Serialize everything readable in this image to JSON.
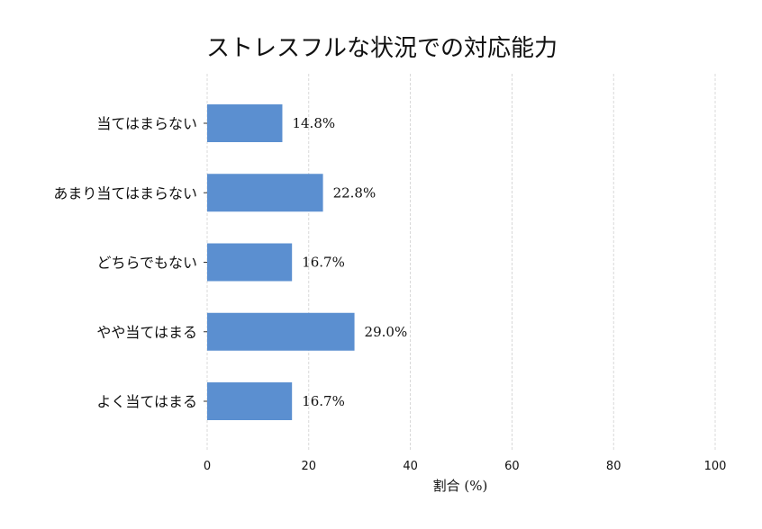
{
  "chart_data": {
    "type": "bar",
    "orientation": "horizontal",
    "title": "ストレスフルな状況での対応能力",
    "xlabel": "割合 (%)",
    "ylabel": "",
    "categories": [
      "当てはまらない",
      "あまり当てはまらない",
      "どちらでもない",
      "やや当てはまる",
      "よく当てはまる"
    ],
    "values": [
      14.8,
      22.8,
      16.7,
      29.0,
      16.7
    ],
    "value_labels": [
      "14.8%",
      "22.8%",
      "16.7%",
      "29.0%",
      "16.7%"
    ],
    "xlim": [
      0,
      100
    ],
    "xticks": [
      0,
      20,
      40,
      60,
      80,
      100
    ],
    "grid": "vertical dashed",
    "bar_color": "#5b8fd0"
  }
}
